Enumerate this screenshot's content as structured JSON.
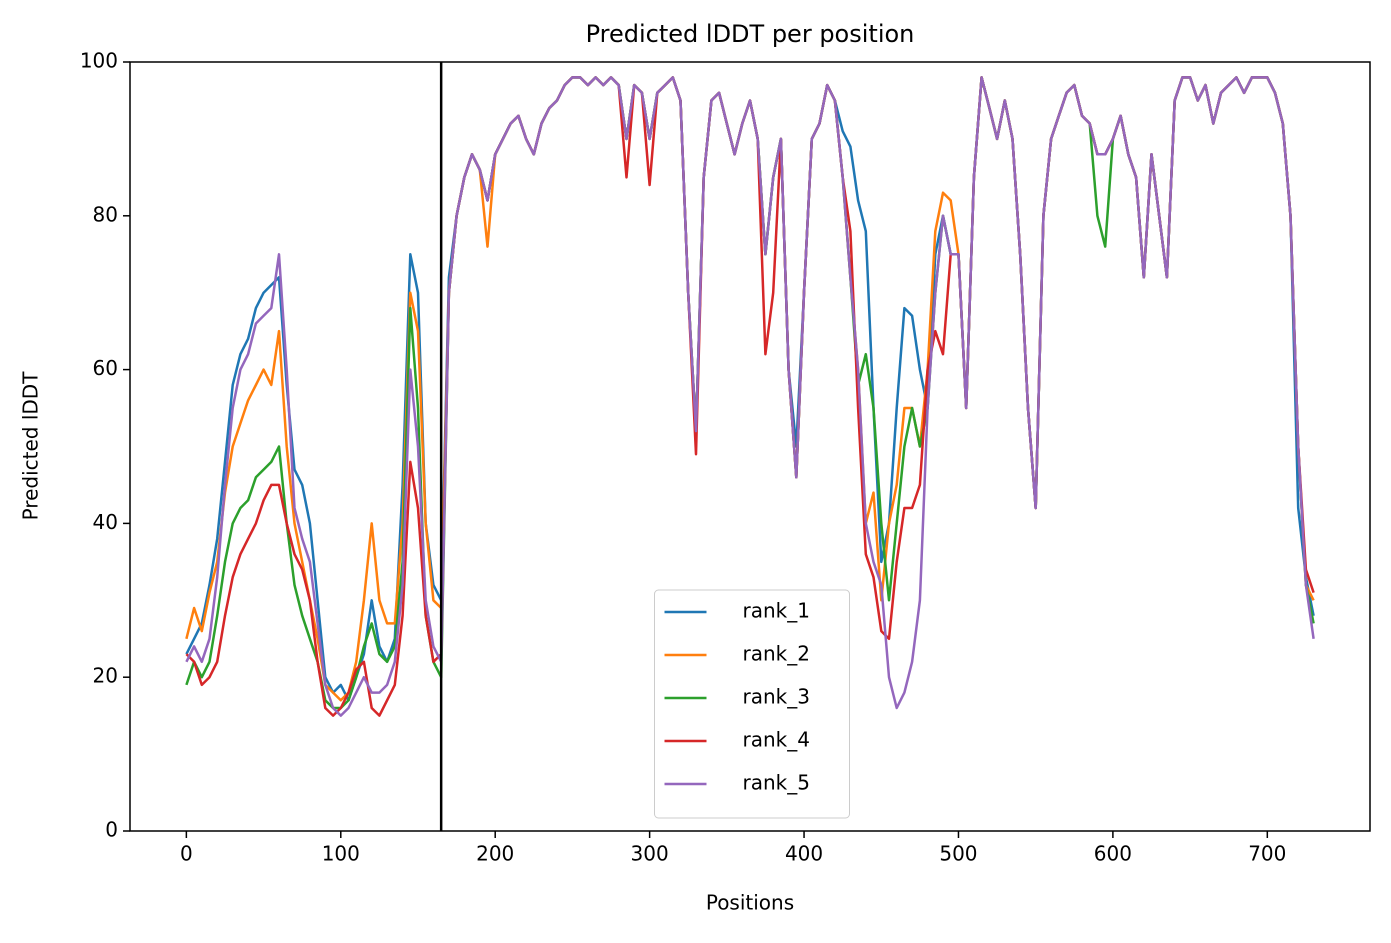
{
  "chart_data": {
    "type": "line",
    "title": "Predicted lDDT per position",
    "xlabel": "Positions",
    "ylabel": "Predicted lDDT",
    "x": [
      0,
      5,
      10,
      15,
      20,
      25,
      30,
      35,
      40,
      45,
      50,
      55,
      60,
      65,
      70,
      75,
      80,
      85,
      90,
      95,
      100,
      105,
      110,
      115,
      120,
      125,
      130,
      135,
      140,
      145,
      150,
      155,
      160,
      165,
      170,
      175,
      180,
      185,
      190,
      195,
      200,
      205,
      210,
      215,
      220,
      225,
      230,
      235,
      240,
      245,
      250,
      255,
      260,
      265,
      270,
      275,
      280,
      285,
      290,
      295,
      300,
      305,
      310,
      315,
      320,
      325,
      330,
      335,
      340,
      345,
      350,
      355,
      360,
      365,
      370,
      375,
      380,
      385,
      390,
      395,
      400,
      405,
      410,
      415,
      420,
      425,
      430,
      435,
      440,
      445,
      450,
      455,
      460,
      465,
      470,
      475,
      480,
      485,
      490,
      495,
      500,
      505,
      510,
      515,
      520,
      525,
      530,
      535,
      540,
      545,
      550,
      555,
      560,
      565,
      570,
      575,
      580,
      585,
      590,
      595,
      600,
      605,
      610,
      615,
      620,
      625,
      630,
      635,
      640,
      645,
      650,
      655,
      660,
      665,
      670,
      675,
      680,
      685,
      690,
      695,
      700,
      705,
      710,
      715,
      720,
      725,
      730
    ],
    "series": [
      {
        "name": "rank_1",
        "color": "#1f77b4",
        "values": [
          23,
          25,
          27,
          32,
          38,
          48,
          58,
          62,
          64,
          68,
          70,
          71,
          72,
          58,
          47,
          45,
          40,
          30,
          20,
          18,
          19,
          17,
          20,
          23,
          30,
          24,
          22,
          25,
          45,
          75,
          70,
          40,
          32,
          30,
          72,
          80,
          85,
          88,
          86,
          82,
          88,
          90,
          92,
          93,
          90,
          88,
          92,
          94,
          95,
          97,
          98,
          98,
          97,
          98,
          97,
          98,
          97,
          90,
          97,
          96,
          90,
          96,
          97,
          98,
          95,
          70,
          52,
          85,
          95,
          96,
          92,
          88,
          92,
          95,
          90,
          75,
          85,
          90,
          60,
          50,
          70,
          90,
          92,
          97,
          95,
          91,
          89,
          82,
          78,
          55,
          35,
          40,
          55,
          68,
          67,
          60,
          55,
          75,
          80,
          75,
          75,
          55,
          85,
          98,
          94,
          90,
          95,
          90,
          75,
          55,
          42,
          80,
          90,
          93,
          96,
          97,
          93,
          92,
          88,
          88,
          90,
          93,
          88,
          85,
          72,
          88,
          80,
          72,
          95,
          98,
          98,
          95,
          97,
          92,
          96,
          97,
          98,
          96,
          98,
          98,
          98,
          96,
          92,
          80,
          42,
          33,
          28
        ]
      },
      {
        "name": "rank_2",
        "color": "#ff7f0e",
        "values": [
          25,
          29,
          26,
          31,
          35,
          44,
          50,
          53,
          56,
          58,
          60,
          58,
          65,
          50,
          40,
          35,
          30,
          25,
          19,
          18,
          17,
          18,
          22,
          30,
          40,
          30,
          27,
          27,
          40,
          70,
          65,
          40,
          30,
          29,
          70,
          80,
          85,
          88,
          86,
          76,
          88,
          90,
          92,
          93,
          90,
          88,
          92,
          94,
          95,
          97,
          98,
          98,
          97,
          98,
          97,
          98,
          97,
          90,
          97,
          96,
          90,
          96,
          97,
          98,
          95,
          70,
          52,
          85,
          95,
          96,
          92,
          88,
          92,
          95,
          90,
          75,
          85,
          90,
          60,
          46,
          70,
          90,
          92,
          97,
          95,
          85,
          72,
          60,
          40,
          44,
          30,
          40,
          45,
          55,
          55,
          50,
          60,
          78,
          83,
          82,
          75,
          55,
          85,
          98,
          94,
          90,
          95,
          90,
          75,
          55,
          42,
          80,
          90,
          93,
          96,
          97,
          93,
          92,
          88,
          88,
          90,
          93,
          88,
          85,
          72,
          88,
          80,
          72,
          95,
          98,
          98,
          95,
          97,
          92,
          96,
          97,
          98,
          96,
          98,
          98,
          98,
          96,
          92,
          80,
          50,
          32,
          30
        ]
      },
      {
        "name": "rank_3",
        "color": "#2ca02c",
        "values": [
          19,
          22,
          20,
          22,
          28,
          35,
          40,
          42,
          43,
          46,
          47,
          48,
          50,
          40,
          32,
          28,
          25,
          22,
          17,
          16,
          16,
          17,
          20,
          24,
          27,
          23,
          22,
          24,
          35,
          68,
          55,
          28,
          22,
          20,
          70,
          80,
          85,
          88,
          86,
          82,
          88,
          90,
          92,
          93,
          90,
          88,
          92,
          94,
          95,
          97,
          98,
          98,
          97,
          98,
          97,
          98,
          97,
          90,
          97,
          96,
          90,
          96,
          97,
          98,
          95,
          70,
          52,
          85,
          95,
          96,
          92,
          88,
          92,
          95,
          90,
          75,
          85,
          90,
          60,
          46,
          70,
          90,
          92,
          97,
          95,
          85,
          72,
          58,
          62,
          55,
          40,
          30,
          40,
          50,
          55,
          50,
          55,
          70,
          80,
          75,
          75,
          55,
          85,
          98,
          94,
          90,
          95,
          90,
          75,
          55,
          42,
          80,
          90,
          93,
          96,
          97,
          93,
          92,
          80,
          76,
          90,
          93,
          88,
          85,
          72,
          88,
          80,
          72,
          95,
          98,
          98,
          95,
          97,
          92,
          96,
          97,
          98,
          96,
          98,
          98,
          98,
          96,
          92,
          80,
          50,
          32,
          27
        ]
      },
      {
        "name": "rank_4",
        "color": "#d62728",
        "values": [
          23,
          22,
          19,
          20,
          22,
          28,
          33,
          36,
          38,
          40,
          43,
          45,
          45,
          40,
          36,
          34,
          30,
          22,
          16,
          15,
          16,
          18,
          21,
          22,
          16,
          15,
          17,
          19,
          28,
          48,
          42,
          28,
          22,
          23,
          70,
          80,
          85,
          88,
          86,
          82,
          88,
          90,
          92,
          93,
          90,
          88,
          92,
          94,
          95,
          97,
          98,
          98,
          97,
          98,
          97,
          98,
          97,
          85,
          97,
          96,
          84,
          96,
          97,
          98,
          95,
          70,
          49,
          85,
          95,
          96,
          92,
          88,
          92,
          95,
          90,
          62,
          70,
          90,
          60,
          46,
          70,
          90,
          92,
          97,
          95,
          85,
          78,
          55,
          36,
          33,
          26,
          25,
          35,
          42,
          42,
          45,
          60,
          65,
          62,
          75,
          75,
          55,
          85,
          98,
          94,
          90,
          95,
          90,
          75,
          55,
          42,
          80,
          90,
          93,
          96,
          97,
          93,
          92,
          88,
          88,
          90,
          93,
          88,
          85,
          72,
          88,
          80,
          72,
          95,
          98,
          98,
          95,
          97,
          92,
          96,
          97,
          98,
          96,
          98,
          98,
          98,
          96,
          92,
          80,
          50,
          34,
          31
        ]
      },
      {
        "name": "rank_5",
        "color": "#9467bd",
        "values": [
          22,
          24,
          22,
          25,
          33,
          45,
          55,
          60,
          62,
          66,
          67,
          68,
          75,
          60,
          42,
          38,
          35,
          27,
          19,
          16,
          15,
          16,
          18,
          20,
          18,
          18,
          19,
          22,
          32,
          60,
          50,
          30,
          24,
          22,
          70,
          80,
          85,
          88,
          86,
          82,
          88,
          90,
          92,
          93,
          90,
          88,
          92,
          94,
          95,
          97,
          98,
          98,
          97,
          98,
          97,
          98,
          97,
          90,
          97,
          96,
          90,
          96,
          97,
          98,
          95,
          70,
          52,
          85,
          95,
          96,
          92,
          88,
          92,
          95,
          90,
          75,
          85,
          90,
          60,
          46,
          70,
          90,
          92,
          97,
          95,
          85,
          72,
          60,
          40,
          35,
          32,
          20,
          16,
          18,
          22,
          30,
          55,
          70,
          80,
          75,
          75,
          55,
          85,
          98,
          94,
          90,
          95,
          90,
          75,
          55,
          42,
          80,
          90,
          93,
          96,
          97,
          93,
          92,
          88,
          88,
          90,
          93,
          88,
          85,
          72,
          88,
          80,
          72,
          95,
          98,
          98,
          95,
          97,
          92,
          96,
          97,
          98,
          96,
          98,
          98,
          98,
          96,
          92,
          80,
          50,
          32,
          25
        ]
      }
    ],
    "vline_x": 165,
    "xlim": [
      -36.5,
      766.5
    ],
    "xticks": [
      0,
      100,
      200,
      300,
      400,
      500,
      600,
      700
    ],
    "ylim": [
      0,
      100
    ],
    "yticks": [
      0,
      20,
      40,
      60,
      80,
      100
    ],
    "legend": "lower center"
  }
}
